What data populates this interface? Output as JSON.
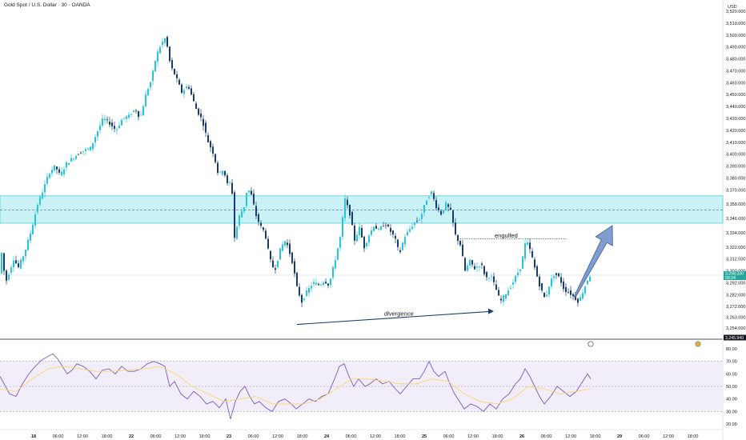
{
  "header": {
    "symbol": "Gold Spot / U.S. Dollar · 30 · OANDA",
    "currency": "USD"
  },
  "colors": {
    "up": "#26c6da",
    "down": "#1a3b6e",
    "zone_fill": "#b3ebf2",
    "zone_border": "#4dd0e1",
    "rsi_line": "#7e57c2",
    "rsi_ma": "#f9d56e",
    "rsi_band": "#ede7f6",
    "arrow": "#6a8cc7",
    "divergence": "#1a3b6e",
    "price_tag": "#26a69a",
    "last_close_tag": "#131722"
  },
  "chart_data": {
    "type": "candlestick",
    "title": "Gold Spot / U.S. Dollar · 30 · OANDA",
    "timeframe": "30",
    "x_tick_labels": [
      "18",
      "06:00",
      "12:00",
      "18:00",
      "22",
      "06:00",
      "12:00",
      "18:00",
      "23",
      "06:00",
      "12:00",
      "18:00",
      "24",
      "06:00",
      "12:00",
      "18:00",
      "25",
      "06:00",
      "12:00",
      "18:00",
      "26",
      "06:00",
      "12:00",
      "18:00",
      "29",
      "06:00",
      "12:00",
      "18:00"
    ],
    "x_tick_bold": [
      "18",
      "22",
      "23",
      "24",
      "25",
      "26",
      "29"
    ],
    "y_tick_labels": [
      "3,520.000",
      "3,510.000",
      "3,500.000",
      "3,490.000",
      "3,480.000",
      "3,470.000",
      "3,460.000",
      "3,450.000",
      "3,440.000",
      "3,430.000",
      "3,420.000",
      "3,410.000",
      "3,400.000",
      "3,390.000",
      "3,380.000",
      "3,370.000",
      "3,358.000",
      "3,346.000",
      "3,334.000",
      "3,322.000",
      "3,312.000",
      "3,302.000",
      "3,292.000",
      "3,282.000",
      "3,272.000",
      "3,263.000",
      "3,254.000",
      "3,245.940"
    ],
    "ylim": [
      3245.94,
      3520
    ],
    "price_path": [
      [
        0,
        3322
      ],
      [
        6,
        3292
      ],
      [
        16,
        3312
      ],
      [
        22,
        3305
      ],
      [
        30,
        3318
      ],
      [
        38,
        3336
      ],
      [
        46,
        3358
      ],
      [
        54,
        3372
      ],
      [
        60,
        3384
      ],
      [
        68,
        3390
      ],
      [
        74,
        3382
      ],
      [
        82,
        3392
      ],
      [
        92,
        3398
      ],
      [
        100,
        3402
      ],
      [
        112,
        3405
      ],
      [
        120,
        3418
      ],
      [
        128,
        3430
      ],
      [
        136,
        3426
      ],
      [
        144,
        3420
      ],
      [
        152,
        3430
      ],
      [
        160,
        3432
      ],
      [
        168,
        3438
      ],
      [
        174,
        3430
      ],
      [
        182,
        3452
      ],
      [
        188,
        3462
      ],
      [
        194,
        3482
      ],
      [
        200,
        3492
      ],
      [
        206,
        3498
      ],
      [
        212,
        3474
      ],
      [
        218,
        3466
      ],
      [
        226,
        3452
      ],
      [
        234,
        3458
      ],
      [
        244,
        3438
      ],
      [
        252,
        3428
      ],
      [
        258,
        3412
      ],
      [
        266,
        3400
      ],
      [
        272,
        3382
      ],
      [
        278,
        3388
      ],
      [
        284,
        3372
      ],
      [
        288,
        3380
      ],
      [
        292,
        3330
      ],
      [
        298,
        3348
      ],
      [
        304,
        3356
      ],
      [
        308,
        3372
      ],
      [
        314,
        3364
      ],
      [
        318,
        3350
      ],
      [
        324,
        3340
      ],
      [
        330,
        3334
      ],
      [
        336,
        3312
      ],
      [
        342,
        3302
      ],
      [
        350,
        3322
      ],
      [
        356,
        3328
      ],
      [
        364,
        3310
      ],
      [
        370,
        3288
      ],
      [
        376,
        3276
      ],
      [
        382,
        3284
      ],
      [
        390,
        3292
      ],
      [
        398,
        3290
      ],
      [
        404,
        3294
      ],
      [
        410,
        3290
      ],
      [
        418,
        3312
      ],
      [
        424,
        3330
      ],
      [
        430,
        3362
      ],
      [
        436,
        3350
      ],
      [
        442,
        3328
      ],
      [
        448,
        3338
      ],
      [
        454,
        3322
      ],
      [
        460,
        3332
      ],
      [
        466,
        3340
      ],
      [
        472,
        3336
      ],
      [
        480,
        3342
      ],
      [
        486,
        3336
      ],
      [
        492,
        3330
      ],
      [
        498,
        3316
      ],
      [
        504,
        3330
      ],
      [
        510,
        3336
      ],
      [
        516,
        3342
      ],
      [
        524,
        3346
      ],
      [
        532,
        3362
      ],
      [
        538,
        3368
      ],
      [
        544,
        3356
      ],
      [
        550,
        3350
      ],
      [
        556,
        3358
      ],
      [
        562,
        3352
      ],
      [
        568,
        3332
      ],
      [
        574,
        3324
      ],
      [
        580,
        3302
      ],
      [
        586,
        3310
      ],
      [
        592,
        3304
      ],
      [
        600,
        3308
      ],
      [
        606,
        3296
      ],
      [
        612,
        3298
      ],
      [
        618,
        3288
      ],
      [
        624,
        3276
      ],
      [
        630,
        3282
      ],
      [
        638,
        3290
      ],
      [
        644,
        3298
      ],
      [
        650,
        3306
      ],
      [
        656,
        3328
      ],
      [
        662,
        3318
      ],
      [
        668,
        3302
      ],
      [
        674,
        3288
      ],
      [
        680,
        3278
      ],
      [
        686,
        3292
      ],
      [
        692,
        3300
      ],
      [
        698,
        3296
      ],
      [
        704,
        3286
      ],
      [
        710,
        3284
      ],
      [
        716,
        3280
      ],
      [
        722,
        3276
      ],
      [
        728,
        3286
      ],
      [
        734,
        3296
      ],
      [
        738,
        3300
      ]
    ],
    "last_price": "3,298.330",
    "last_price_sub": "09:24",
    "last_price_value": 3298.33,
    "close_price_line": "3,245.940",
    "close_price_value": 3245.94,
    "resistance_zone": {
      "top": 3365,
      "bottom": 3342,
      "midline": 3353
    },
    "engulfed_level": 3329,
    "annotations": {
      "divergence": "divergence",
      "engulfed": "engulfed"
    },
    "divergence_line": {
      "x": [
        371,
        617
      ],
      "y": [
        3257,
        3268
      ]
    },
    "arrow_target": {
      "x": 765,
      "y": 3340
    },
    "rsi": {
      "ylim": [
        20,
        80
      ],
      "y_tick_labels": [
        "80.00",
        "70.00",
        "60.00",
        "50.00",
        "40.00",
        "30.00",
        "20.00"
      ],
      "band": [
        30,
        70
      ],
      "levels": [
        70,
        50,
        30
      ],
      "line": [
        [
          0,
          58
        ],
        [
          12,
          44
        ],
        [
          20,
          42
        ],
        [
          28,
          52
        ],
        [
          36,
          60
        ],
        [
          44,
          66
        ],
        [
          52,
          71
        ],
        [
          60,
          74
        ],
        [
          66,
          76
        ],
        [
          72,
          72
        ],
        [
          78,
          66
        ],
        [
          84,
          60
        ],
        [
          90,
          63
        ],
        [
          96,
          68
        ],
        [
          104,
          66
        ],
        [
          112,
          62
        ],
        [
          120,
          56
        ],
        [
          128,
          63
        ],
        [
          136,
          64
        ],
        [
          144,
          60
        ],
        [
          152,
          66
        ],
        [
          160,
          62
        ],
        [
          168,
          62
        ],
        [
          176,
          64
        ],
        [
          184,
          68
        ],
        [
          192,
          70
        ],
        [
          200,
          68
        ],
        [
          206,
          66
        ],
        [
          212,
          50
        ],
        [
          218,
          54
        ],
        [
          226,
          44
        ],
        [
          234,
          40
        ],
        [
          242,
          46
        ],
        [
          250,
          42
        ],
        [
          258,
          36
        ],
        [
          266,
          38
        ],
        [
          274,
          33
        ],
        [
          282,
          40
        ],
        [
          288,
          24
        ],
        [
          294,
          38
        ],
        [
          300,
          46
        ],
        [
          306,
          50
        ],
        [
          312,
          42
        ],
        [
          318,
          36
        ],
        [
          324,
          38
        ],
        [
          332,
          33
        ],
        [
          340,
          30
        ],
        [
          348,
          38
        ],
        [
          356,
          40
        ],
        [
          364,
          36
        ],
        [
          370,
          32
        ],
        [
          378,
          36
        ],
        [
          386,
          40
        ],
        [
          394,
          38
        ],
        [
          402,
          42
        ],
        [
          410,
          44
        ],
        [
          418,
          56
        ],
        [
          424,
          66
        ],
        [
          430,
          68
        ],
        [
          436,
          58
        ],
        [
          442,
          50
        ],
        [
          448,
          56
        ],
        [
          456,
          50
        ],
        [
          462,
          52
        ],
        [
          470,
          56
        ],
        [
          478,
          52
        ],
        [
          486,
          54
        ],
        [
          494,
          48
        ],
        [
          500,
          44
        ],
        [
          508,
          50
        ],
        [
          516,
          56
        ],
        [
          524,
          56
        ],
        [
          530,
          62
        ],
        [
          536,
          70
        ],
        [
          542,
          62
        ],
        [
          548,
          58
        ],
        [
          556,
          62
        ],
        [
          562,
          52
        ],
        [
          568,
          44
        ],
        [
          574,
          38
        ],
        [
          580,
          32
        ],
        [
          588,
          36
        ],
        [
          596,
          34
        ],
        [
          604,
          30
        ],
        [
          612,
          36
        ],
        [
          620,
          32
        ],
        [
          628,
          40
        ],
        [
          636,
          44
        ],
        [
          644,
          52
        ],
        [
          650,
          56
        ],
        [
          656,
          64
        ],
        [
          662,
          58
        ],
        [
          668,
          50
        ],
        [
          674,
          42
        ],
        [
          680,
          36
        ],
        [
          688,
          42
        ],
        [
          696,
          50
        ],
        [
          704,
          46
        ],
        [
          712,
          42
        ],
        [
          720,
          46
        ],
        [
          728,
          54
        ],
        [
          734,
          60
        ],
        [
          738,
          56
        ]
      ],
      "ma": [
        [
          0,
          48
        ],
        [
          20,
          46
        ],
        [
          40,
          56
        ],
        [
          60,
          64
        ],
        [
          80,
          66
        ],
        [
          100,
          64
        ],
        [
          120,
          62
        ],
        [
          140,
          62
        ],
        [
          160,
          63
        ],
        [
          180,
          64
        ],
        [
          200,
          66
        ],
        [
          220,
          60
        ],
        [
          240,
          50
        ],
        [
          260,
          44
        ],
        [
          280,
          38
        ],
        [
          300,
          40
        ],
        [
          320,
          42
        ],
        [
          340,
          36
        ],
        [
          360,
          36
        ],
        [
          380,
          36
        ],
        [
          400,
          40
        ],
        [
          420,
          48
        ],
        [
          440,
          56
        ],
        [
          460,
          56
        ],
        [
          480,
          54
        ],
        [
          500,
          52
        ],
        [
          520,
          52
        ],
        [
          540,
          56
        ],
        [
          560,
          54
        ],
        [
          580,
          44
        ],
        [
          600,
          38
        ],
        [
          620,
          36
        ],
        [
          640,
          40
        ],
        [
          660,
          50
        ],
        [
          680,
          48
        ],
        [
          700,
          44
        ],
        [
          720,
          46
        ],
        [
          738,
          48
        ]
      ]
    }
  }
}
